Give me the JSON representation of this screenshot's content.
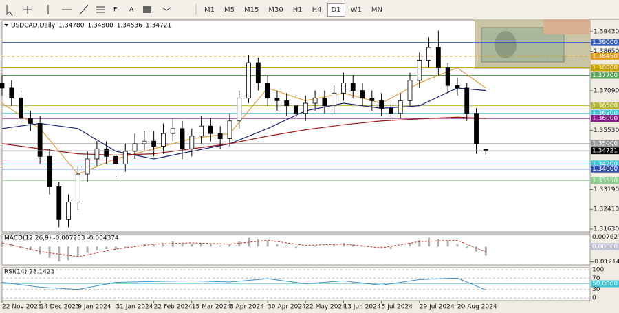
{
  "toolbar": {
    "timeframes": [
      "M1",
      "M5",
      "M15",
      "M30",
      "H1",
      "H4",
      "D1",
      "W1",
      "MN"
    ],
    "active": "D1"
  },
  "chart_data": {
    "type": "candlestick",
    "header": {
      "symbol": "USDCAD,Daily",
      "open": "1.34780",
      "high": "1.34800",
      "low": "1.34536",
      "close": "1.34721"
    },
    "xlim": [
      0,
      248
    ],
    "ylim": [
      1.3152,
      1.3986
    ],
    "xticks": [
      {
        "value": 0,
        "label": "22 Nov 2023"
      },
      {
        "value": 16,
        "label": "14 Dec 2023"
      },
      {
        "value": 32,
        "label": "9 Jan 2024"
      },
      {
        "value": 48,
        "label": "31 Jan 2024"
      },
      {
        "value": 64,
        "label": "22 Feb 2024"
      },
      {
        "value": 80,
        "label": "15 Mar 2024"
      },
      {
        "value": 96,
        "label": "8 Apr 2024"
      },
      {
        "value": 112,
        "label": "30 Apr 2024"
      },
      {
        "value": 128,
        "label": "22 May 2024"
      },
      {
        "value": 144,
        "label": "13 Jun 2024"
      },
      {
        "value": 160,
        "label": "5 Jul 2024"
      },
      {
        "value": 176,
        "label": "29 Jul 2024"
      },
      {
        "value": 192,
        "label": "20 Aug 2024"
      }
    ],
    "yticks": [
      {
        "value": 1.3943,
        "label": "1.39430"
      },
      {
        "value": 1.3865,
        "label": "1.38650"
      },
      {
        "value": 1.3709,
        "label": "1.37090"
      },
      {
        "value": 1.3553,
        "label": "1.35530"
      },
      {
        "value": 1.3319,
        "label": "1.33190"
      },
      {
        "value": 1.3241,
        "label": "1.32410"
      },
      {
        "value": 1.3163,
        "label": "1.31630"
      }
    ],
    "levels": [
      {
        "value": 1.39,
        "label": "1.39000",
        "color": "#3a5fb8"
      },
      {
        "value": 1.3845,
        "label": "1.38450",
        "color": "#e39a1c"
      },
      {
        "value": 1.38,
        "label": "1.38000",
        "color": "#c9a100"
      },
      {
        "value": 1.377,
        "label": "1.37700",
        "color": "#5aa25a"
      },
      {
        "value": 1.365,
        "label": "1.36500",
        "color": "#b5b53a"
      },
      {
        "value": 1.362,
        "label": "1.36200",
        "color": "#3cc6d6"
      },
      {
        "value": 1.36,
        "label": "1.36000",
        "color": "#8b1a8b"
      },
      {
        "value": 1.35,
        "label": "1.35000",
        "color": "#9a9a9a"
      },
      {
        "value": 1.342,
        "label": "1.34200",
        "color": "#3cc6d6"
      },
      {
        "value": 1.34,
        "label": "1.34000",
        "color": "#2f4fb0"
      },
      {
        "value": 1.3355,
        "label": "1.33550",
        "color": "#8ccf8c"
      }
    ],
    "current": {
      "value": 1.34721,
      "label": "1.34721"
    },
    "candles": {
      "x": [
        0,
        4,
        8,
        12,
        16,
        20,
        24,
        28,
        32,
        36,
        40,
        44,
        48,
        52,
        56,
        60,
        64,
        68,
        72,
        76,
        80,
        84,
        88,
        92,
        96,
        100,
        104,
        108,
        112,
        116,
        120,
        124,
        128,
        132,
        136,
        140,
        144,
        148,
        152,
        156,
        160,
        164,
        168,
        172,
        176,
        180,
        184,
        188,
        192,
        196,
        200,
        204
      ],
      "open": [
        1.374,
        1.372,
        1.368,
        1.36,
        1.358,
        1.345,
        1.333,
        1.32,
        1.327,
        1.338,
        1.344,
        1.348,
        1.345,
        1.342,
        1.347,
        1.35,
        1.351,
        1.349,
        1.354,
        1.356,
        1.348,
        1.353,
        1.357,
        1.354,
        1.352,
        1.359,
        1.368,
        1.382,
        1.374,
        1.368,
        1.367,
        1.365,
        1.362,
        1.366,
        1.368,
        1.365,
        1.37,
        1.374,
        1.371,
        1.368,
        1.367,
        1.364,
        1.362,
        1.367,
        1.375,
        1.383,
        1.388,
        1.38,
        1.373,
        1.372,
        1.362,
        1.3478
      ],
      "high": [
        1.377,
        1.375,
        1.371,
        1.363,
        1.361,
        1.348,
        1.335,
        1.33,
        1.341,
        1.347,
        1.351,
        1.351,
        1.348,
        1.35,
        1.354,
        1.355,
        1.355,
        1.358,
        1.36,
        1.359,
        1.356,
        1.361,
        1.36,
        1.357,
        1.362,
        1.371,
        1.385,
        1.384,
        1.377,
        1.371,
        1.37,
        1.368,
        1.369,
        1.371,
        1.371,
        1.373,
        1.378,
        1.377,
        1.374,
        1.371,
        1.37,
        1.367,
        1.37,
        1.378,
        1.386,
        1.392,
        1.3946,
        1.382,
        1.376,
        1.374,
        1.364,
        1.348
      ],
      "low": [
        1.369,
        1.365,
        1.357,
        1.355,
        1.342,
        1.33,
        1.317,
        1.317,
        1.324,
        1.335,
        1.341,
        1.342,
        1.337,
        1.339,
        1.344,
        1.347,
        1.345,
        1.346,
        1.351,
        1.344,
        1.345,
        1.35,
        1.351,
        1.348,
        1.349,
        1.356,
        1.366,
        1.371,
        1.365,
        1.363,
        1.361,
        1.359,
        1.359,
        1.363,
        1.362,
        1.362,
        1.367,
        1.368,
        1.365,
        1.363,
        1.361,
        1.359,
        1.36,
        1.365,
        1.372,
        1.38,
        1.377,
        1.37,
        1.369,
        1.359,
        1.346,
        1.34536
      ],
      "close": [
        1.372,
        1.368,
        1.36,
        1.358,
        1.345,
        1.333,
        1.32,
        1.327,
        1.338,
        1.344,
        1.348,
        1.345,
        1.342,
        1.347,
        1.35,
        1.351,
        1.349,
        1.354,
        1.356,
        1.348,
        1.353,
        1.357,
        1.354,
        1.352,
        1.359,
        1.368,
        1.382,
        1.374,
        1.368,
        1.367,
        1.365,
        1.362,
        1.366,
        1.368,
        1.365,
        1.37,
        1.374,
        1.371,
        1.368,
        1.367,
        1.364,
        1.362,
        1.367,
        1.375,
        1.383,
        1.388,
        1.38,
        1.373,
        1.372,
        1.362,
        1.35,
        1.34721
      ]
    },
    "averages": {
      "x": [
        0,
        16,
        32,
        48,
        64,
        80,
        96,
        112,
        128,
        144,
        160,
        176,
        192,
        204
      ],
      "series": [
        {
          "color": "#e0a040",
          "values": [
            1.366,
            1.356,
            1.338,
            1.344,
            1.348,
            1.352,
            1.354,
            1.372,
            1.367,
            1.37,
            1.366,
            1.374,
            1.38,
            1.372
          ]
        },
        {
          "color": "#1a237e",
          "values": [
            1.356,
            1.358,
            1.356,
            1.347,
            1.344,
            1.347,
            1.35,
            1.356,
            1.363,
            1.366,
            1.364,
            1.365,
            1.372,
            1.371
          ]
        },
        {
          "color": "#a01818",
          "values": [
            1.35,
            1.348,
            1.346,
            1.3455,
            1.346,
            1.348,
            1.35,
            1.353,
            1.3555,
            1.3575,
            1.359,
            1.3598,
            1.3605,
            1.36
          ]
        }
      ]
    },
    "macd": {
      "title": "MACD(12,26,9)",
      "main_label": "-0.007233",
      "signal_label": "-0.004374",
      "ylim": [
        -0.0135,
        0.009
      ],
      "yticks": [
        0.007627,
        {
          "value": 0,
          "label": "0.00000"
        },
        -0.012144
      ],
      "histogram": [
        0.004,
        0.002,
        -0.001,
        -0.003,
        -0.006,
        -0.009,
        -0.012,
        -0.011,
        -0.008,
        -0.005,
        -0.003,
        -0.002,
        -0.002,
        -0.001,
        0.001,
        0.002,
        0.002,
        0.003,
        0.004,
        0.002,
        0.002,
        0.003,
        0.002,
        0.001,
        0.002,
        0.004,
        0.007,
        0.006,
        0.004,
        0.002,
        0.001,
        -0.001,
        0,
        0.001,
        0,
        0.002,
        0.003,
        0.002,
        0.001,
        0,
        -0.001,
        -0.002,
        0,
        0.003,
        0.005,
        0.007,
        0.006,
        0.004,
        0.002,
        -0.001,
        -0.004,
        -0.007233
      ],
      "signal": [
        0.003,
        -0.004,
        -0.008,
        -0.002,
        0.002,
        0.003,
        0.002,
        0.005,
        0.001,
        0.002,
        -0.001,
        0.004,
        0.005,
        -0.004374
      ]
    },
    "rsi": {
      "title": "RSI(14)",
      "value_label": "28.1423",
      "ylim": [
        0,
        100
      ],
      "yticks": [
        100,
        70,
        {
          "value": 50,
          "label": "50.0000"
        },
        30,
        0
      ],
      "values": [
        55,
        38,
        30,
        55,
        58,
        60,
        56,
        68,
        50,
        60,
        45,
        65,
        70,
        28.1423
      ]
    }
  }
}
